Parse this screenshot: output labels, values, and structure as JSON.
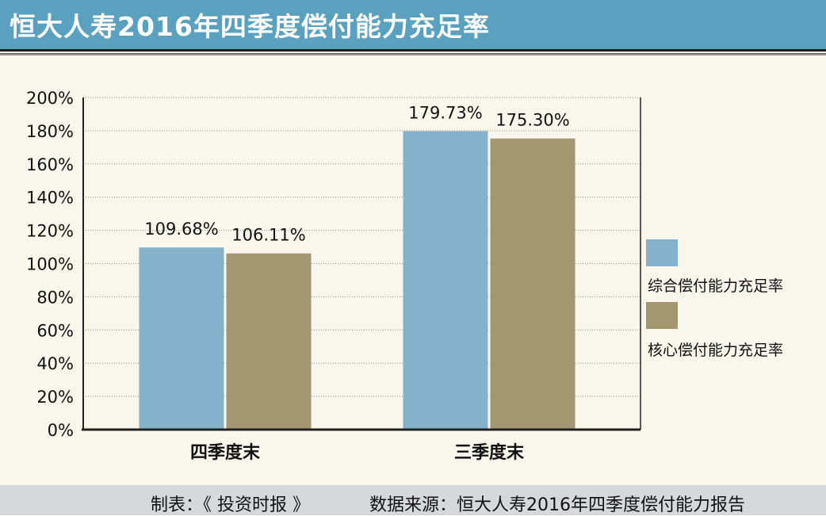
{
  "header": {
    "title": "恒大人寿2016年四季度偿付能力充足率"
  },
  "footer": {
    "maker": "制表：《 投资时报 》",
    "source": "数据来源：恒大人寿2016年四季度偿付能力报告"
  },
  "colors": {
    "header_bg": "#5aa0bf",
    "series_1": "#85b1c9",
    "series_2": "#a59672",
    "background": "#f9f7ec",
    "footer_bg": "#d7d8d9"
  },
  "chart_data": {
    "type": "bar",
    "categories": [
      "四季度末",
      "三季度末"
    ],
    "series": [
      {
        "name": "综合偿付能力充足率",
        "values": [
          109.68,
          179.73
        ],
        "labels": [
          "109.68%",
          "179.73%"
        ]
      },
      {
        "name": "核心偿付能力充足率",
        "values": [
          106.11,
          175.3
        ],
        "labels": [
          "106.11%",
          "175.30%"
        ]
      }
    ],
    "yticks": [
      "0%",
      "20%",
      "40%",
      "60%",
      "80%",
      "100%",
      "120%",
      "140%",
      "160%",
      "180%",
      "200%"
    ],
    "ylim": [
      0,
      200
    ],
    "grid": true,
    "legend_position": "right"
  }
}
